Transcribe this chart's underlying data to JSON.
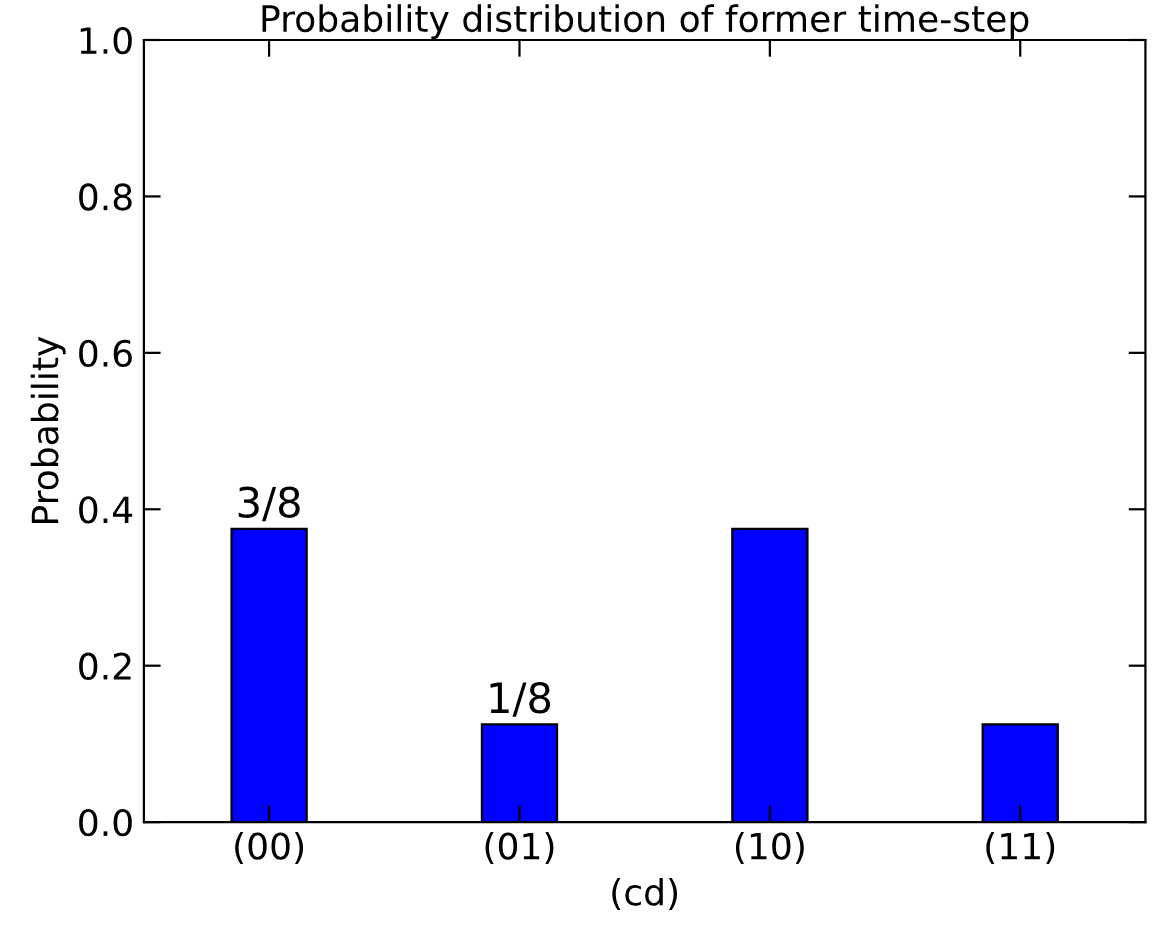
{
  "chart_data": {
    "type": "bar",
    "title": "Probability distribution of former time-step",
    "xlabel": "(cd)",
    "ylabel": "Probability",
    "categories": [
      "(00)",
      "(01)",
      "(10)",
      "(11)"
    ],
    "values": [
      0.375,
      0.125,
      0.375,
      0.125
    ],
    "value_labels": [
      "3/8",
      "1/8",
      null,
      null
    ],
    "color": "#0000ff",
    "ylim": [
      0.0,
      1.0
    ],
    "yticks": [
      {
        "value": 0,
        "label": "0.0"
      },
      0.2,
      0.4,
      0.6,
      0.8,
      {
        "value": 1,
        "label": "1.0"
      }
    ],
    "grid": false,
    "legend": false
  }
}
